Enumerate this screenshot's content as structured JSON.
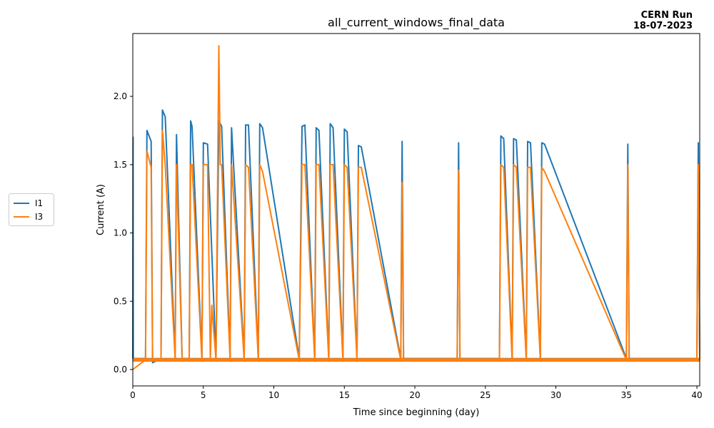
{
  "header": {
    "title": "all_current_windows_final_data",
    "corner_line1": "CERN Run",
    "corner_line2": "18-07-2023"
  },
  "legend": [
    {
      "name": "I1",
      "color": "#1f77b4"
    },
    {
      "name": "I3",
      "color": "#ff7f0e"
    }
  ],
  "chart_data": {
    "type": "line",
    "title": "all_current_windows_final_data",
    "xlabel": "Time since beginning (day)",
    "ylabel": "Current (A)",
    "xlim": [
      0,
      40.2
    ],
    "ylim": [
      -0.12,
      2.46
    ],
    "xticks": [
      0,
      5,
      10,
      15,
      20,
      25,
      30,
      35,
      40
    ],
    "yticks": [
      0.0,
      0.5,
      1.0,
      1.5,
      2.0
    ],
    "grid": false,
    "legend_position": "outside-left",
    "series": [
      {
        "name": "I1",
        "color": "#1f77b4",
        "baseline": 0.08,
        "x": [
          0,
          0.02,
          0.03,
          0.05,
          0.9,
          1.0,
          1.3,
          1.4,
          2.0,
          2.1,
          2.3,
          3.0,
          3.1,
          3.5,
          4.0,
          4.1,
          4.2,
          4.9,
          5.0,
          5.3,
          5.9,
          6.1,
          6.3,
          6.9,
          7.0,
          7.9,
          8.0,
          8.2,
          8.9,
          9.0,
          9.2,
          11.8,
          12.0,
          12.2,
          12.9,
          13.0,
          13.2,
          13.9,
          14.0,
          14.2,
          14.9,
          15.0,
          15.2,
          15.9,
          16.0,
          16.2,
          19.0,
          19.1,
          19.2,
          23.0,
          23.1,
          23.2,
          26.0,
          26.1,
          26.3,
          26.9,
          27.0,
          27.2,
          27.9,
          28.0,
          28.2,
          28.9,
          29.0,
          29.2,
          35.0,
          35.1,
          35.2,
          40.0,
          40.1,
          40.2
        ],
        "y": [
          0.08,
          1.7,
          0.08,
          0.08,
          0.08,
          1.75,
          1.67,
          0.05,
          0.08,
          1.9,
          1.85,
          0.08,
          1.72,
          0.08,
          0.08,
          1.82,
          1.78,
          0.08,
          1.66,
          1.65,
          0.08,
          1.82,
          1.78,
          0.08,
          1.77,
          0.08,
          1.79,
          1.79,
          0.08,
          1.8,
          1.77,
          0.08,
          1.78,
          1.79,
          0.08,
          1.77,
          1.75,
          0.08,
          1.8,
          1.77,
          0.08,
          1.76,
          1.74,
          0.08,
          1.64,
          1.63,
          0.08,
          1.67,
          0.08,
          0.08,
          1.66,
          0.08,
          0.08,
          1.71,
          1.69,
          0.08,
          1.69,
          1.68,
          0.08,
          1.67,
          1.66,
          0.08,
          1.66,
          1.65,
          0.08,
          1.65,
          0.08,
          0.08,
          1.66,
          0.08
        ]
      },
      {
        "name": "I3",
        "color": "#ff7f0e",
        "baseline": 0.07,
        "x": [
          0,
          0.9,
          1.0,
          1.3,
          1.4,
          2.0,
          2.1,
          2.3,
          3.0,
          3.1,
          3.5,
          4.0,
          4.1,
          4.2,
          4.9,
          5.0,
          5.3,
          5.5,
          5.6,
          5.9,
          6.1,
          6.2,
          6.3,
          6.9,
          7.0,
          7.9,
          8.0,
          8.2,
          8.9,
          9.0,
          9.2,
          11.8,
          12.0,
          12.2,
          12.9,
          13.0,
          13.2,
          13.9,
          14.0,
          14.2,
          14.9,
          15.0,
          15.2,
          15.9,
          16.0,
          16.2,
          19.0,
          19.1,
          19.2,
          23.0,
          23.1,
          23.2,
          26.0,
          26.1,
          26.3,
          26.9,
          27.0,
          27.2,
          27.9,
          28.0,
          28.2,
          28.9,
          29.0,
          29.2,
          35.0,
          35.1,
          35.2,
          40.0,
          40.1,
          40.2
        ],
        "y": [
          0.0,
          0.07,
          1.6,
          1.48,
          0.07,
          0.07,
          1.75,
          1.5,
          0.07,
          1.5,
          0.07,
          0.07,
          1.5,
          1.5,
          0.07,
          1.5,
          1.5,
          0.07,
          0.47,
          0.07,
          2.37,
          1.5,
          1.5,
          0.07,
          1.5,
          0.07,
          1.5,
          1.48,
          0.07,
          1.5,
          1.45,
          0.07,
          1.5,
          1.5,
          0.07,
          1.5,
          1.5,
          0.07,
          1.5,
          1.5,
          0.07,
          1.5,
          1.48,
          0.07,
          1.48,
          1.48,
          0.07,
          1.37,
          0.07,
          0.07,
          1.46,
          0.07,
          0.07,
          1.5,
          1.48,
          0.07,
          1.5,
          1.48,
          0.07,
          1.48,
          1.48,
          0.07,
          1.48,
          1.45,
          0.07,
          1.5,
          0.07,
          0.07,
          1.5,
          0.07
        ]
      }
    ]
  }
}
